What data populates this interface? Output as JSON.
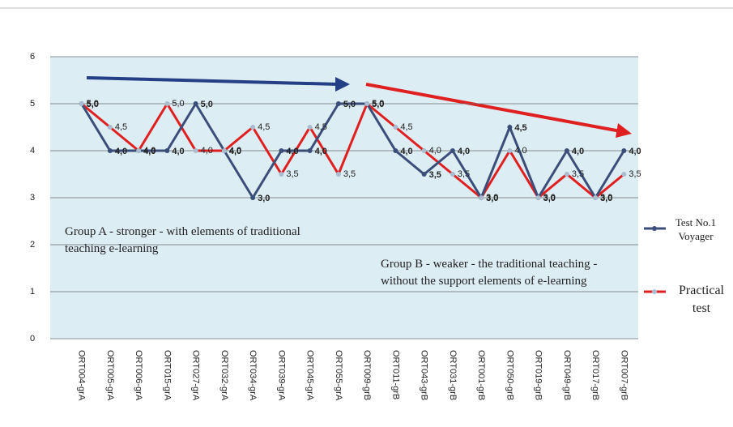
{
  "chart_data": {
    "type": "line",
    "categories": [
      "ORT004-grA",
      "ORT005-grA",
      "ORT006-grA",
      "ORT015-grA",
      "ORT027-grA",
      "ORT032-grA",
      "ORT034-grA",
      "ORT039-grA",
      "ORT045-grA",
      "ORT055-grA",
      "ORT009-grB",
      "ORT011-grB",
      "ORT043-grB",
      "ORT031-grB",
      "ORT001-grB",
      "ORT050-grB",
      "ORT019-grB",
      "ORT049-grB",
      "ORT017-grB",
      "ORT007-grB"
    ],
    "series": [
      {
        "name": "Test No.1 Voyager",
        "color": "#3b4e7a",
        "values": [
          5,
          4,
          4,
          4,
          5,
          4,
          3,
          4,
          4,
          5,
          5,
          4,
          3.5,
          4,
          3,
          4.5,
          3,
          4,
          3,
          4
        ],
        "value_labels": [
          "5,0",
          "4,0",
          "4,0",
          "4,0",
          "5,0",
          "4,0",
          "3,0",
          "4,0",
          "4,0",
          "5,0",
          "5,0",
          "4,0",
          "3,5",
          "4,0",
          "3,0",
          "4,5",
          "3,0",
          "4,0",
          "3,0",
          "4,0"
        ]
      },
      {
        "name": "Practical test",
        "color": "#e02020",
        "values": [
          5,
          4.5,
          4,
          5,
          4,
          4,
          4.5,
          3.5,
          4.5,
          3.5,
          5,
          4.5,
          4,
          3.5,
          3,
          4,
          3,
          3.5,
          3,
          3.5
        ],
        "value_labels": [
          "5,0",
          "4,5",
          "4,0",
          "5,0",
          "4,0",
          "4,0",
          "4,5",
          "3,5",
          "4,5",
          "3,5",
          "5,0",
          "4,5",
          "4,0",
          "3,5",
          "3,0",
          "4,0",
          "3,0",
          "3,5",
          "3,0",
          "3,5"
        ]
      }
    ],
    "ylim": [
      0,
      6
    ],
    "yticks": [
      0,
      1,
      2,
      3,
      4,
      5,
      6
    ],
    "grid": true,
    "annotations": [
      "Group A - stronger - with elements of traditional teaching e-learning",
      "Group B - weaker - the traditional teaching - without the support elements of e-learning"
    ],
    "legend": "right"
  }
}
